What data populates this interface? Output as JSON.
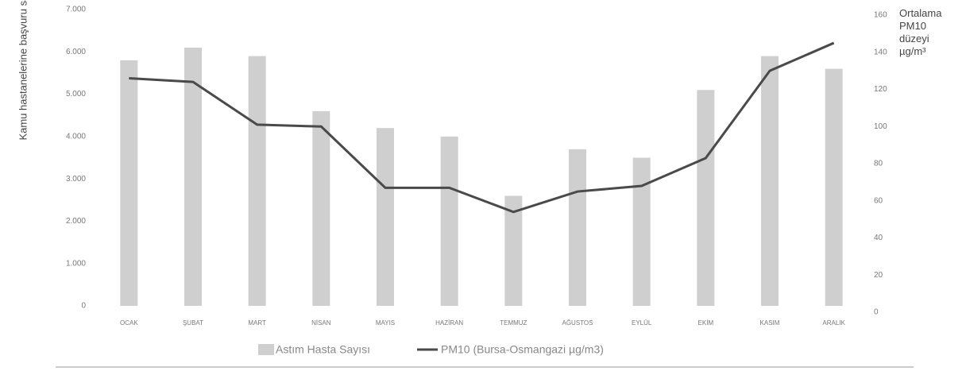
{
  "chart_data": {
    "type": "bar-line",
    "y_label": "Kamu hastanelerine başvuru sayısı",
    "y2_label": "Ortalama PM10 düzeyi µg/m³",
    "categories": [
      "OCAK",
      "ŞUBAT",
      "MART",
      "NİSAN",
      "MAYIS",
      "HAZİRAN",
      "TEMMUZ",
      "AĞUSTOS",
      "EYLÜL",
      "EKİM",
      "KASIM",
      "ARALIK"
    ],
    "series": [
      {
        "name": "Astım Hasta Sayısı",
        "type": "bar",
        "color": "#cfcfcf",
        "values": [
          5800,
          6100,
          5900,
          4600,
          4200,
          4000,
          2600,
          3700,
          3500,
          5100,
          5900,
          5600
        ]
      },
      {
        "name": "PM10 (Bursa-Osmangazi µg/m3)",
        "type": "line",
        "axis": "y2",
        "color": "#4a4a4a",
        "values": [
          126,
          124,
          101,
          100,
          67,
          67,
          54,
          65,
          68,
          83,
          130,
          145
        ]
      }
    ],
    "ylim": [
      0,
      7000
    ],
    "yticks": [
      0,
      {
        "value": 1000,
        "label": "1.000"
      },
      {
        "value": 2000,
        "label": "2.000"
      },
      {
        "value": 3000,
        "label": "3.000"
      },
      {
        "value": 4000,
        "label": "4.000"
      },
      {
        "value": 5000,
        "label": "5.000"
      },
      {
        "value": 6000,
        "label": "6.000"
      },
      {
        "value": 7000,
        "label": "7.000"
      }
    ],
    "y2lim": [
      0,
      160
    ],
    "y2ticks": [
      0,
      20,
      40,
      60,
      80,
      100,
      120,
      140,
      160
    ],
    "legend": "bottom"
  }
}
